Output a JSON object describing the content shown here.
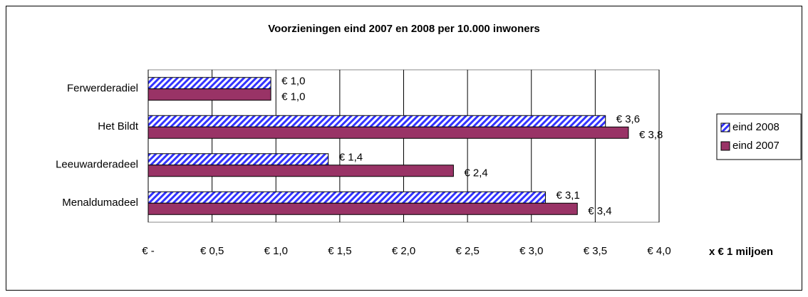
{
  "chart_data": {
    "type": "hbar",
    "title": "Voorzieningen eind 2007 en 2008 per 10.000 inwoners",
    "x_label": "x € 1 miljoen",
    "categories": [
      "Ferwerderadiel",
      "Het Bildt",
      "Leeuwarderadeel",
      "Menaldumadeel"
    ],
    "series": [
      {
        "name": "eind 2008",
        "color": "#3333ff",
        "hatch": true,
        "values": [
          0.96,
          3.58,
          1.41,
          3.11
        ],
        "value_labels": [
          "€ 1,0",
          "€ 3,6",
          "€ 1,4",
          "€ 3,1"
        ]
      },
      {
        "name": "eind 2007",
        "color": "#993366",
        "hatch": false,
        "values": [
          0.96,
          3.76,
          2.39,
          3.36
        ],
        "value_labels": [
          "€ 1,0",
          "€ 3,8",
          "€ 2,4",
          "€ 3,4"
        ]
      }
    ],
    "xlim": [
      0,
      4
    ],
    "xticks": [
      {
        "value": 0,
        "label": "€ -"
      },
      {
        "value": 0.5,
        "label": "€ 0,5"
      },
      {
        "value": 1,
        "label": "€ 1,0"
      },
      {
        "value": 1.5,
        "label": "€ 1,5"
      },
      {
        "value": 2,
        "label": "€ 2,0"
      },
      {
        "value": 2.5,
        "label": "€ 2,5"
      },
      {
        "value": 3,
        "label": "€ 3,0"
      },
      {
        "value": 3.5,
        "label": "€ 3,5"
      },
      {
        "value": 4,
        "label": "€ 4,0"
      }
    ],
    "grid": true,
    "legend": "right"
  }
}
